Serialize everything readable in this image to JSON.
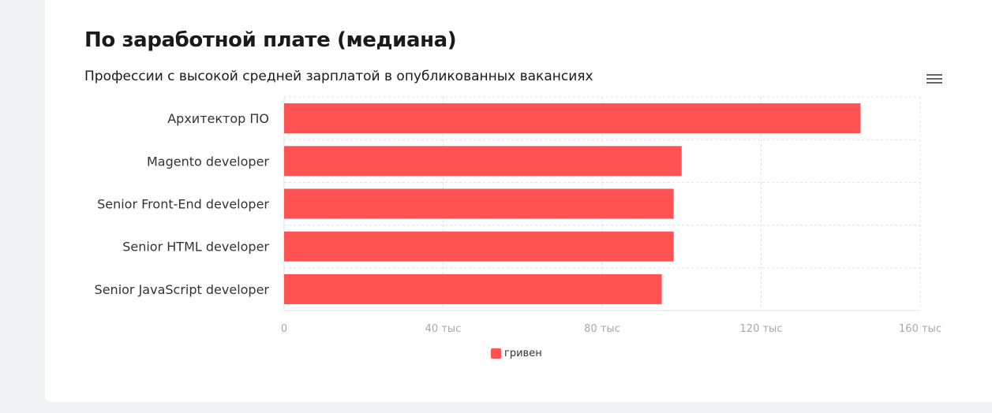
{
  "chart_data": {
    "type": "bar",
    "orientation": "horizontal",
    "title": "По заработной плате (медиана)",
    "subtitle": "Профессии с высокой средней зарплатой в опубликованных вакансиях",
    "categories": [
      "Архитектор ПО",
      "Magento developer",
      "Senior Front-End developer",
      "Senior HTML developer",
      "Senior JavaScript developer"
    ],
    "series": [
      {
        "name": "гривен",
        "values": [
          145000,
          100000,
          98000,
          98000,
          95000
        ]
      }
    ],
    "xlim": [
      0,
      160000
    ],
    "xticks": [
      0,
      40000,
      80000,
      120000,
      160000
    ],
    "xtick_labels": [
      "0",
      "40 тыс",
      "80 тыс",
      "120 тыс",
      "160 тыс"
    ],
    "grid": true,
    "legend_position": "bottom-center",
    "colors": {
      "bar": "#ff5252",
      "grid": "#e0e0e0",
      "tick_label": "#a8a8a8",
      "category_label": "#333333"
    }
  },
  "icons": {
    "menu": "hamburger-menu-icon"
  }
}
